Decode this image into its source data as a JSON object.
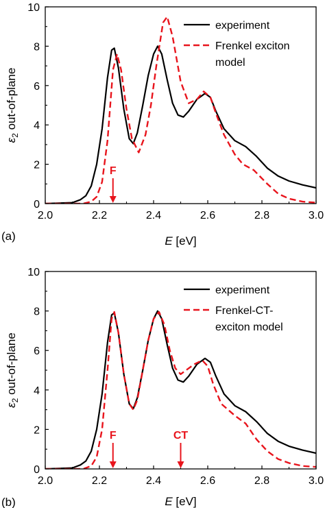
{
  "chart_data": [
    {
      "type": "line",
      "panel_label": "(a)",
      "xlabel": "E [eV]",
      "xlabel_var": "E",
      "xlabel_unit": " [eV]",
      "ylabel": "ε2 out-of-plane",
      "ylabel_sym": "ε",
      "ylabel_sub": "2",
      "ylabel_rest": " out-of-plane",
      "xlim": [
        2.0,
        3.0
      ],
      "ylim": [
        0,
        10
      ],
      "xticks": [
        "2.0",
        "2.2",
        "2.4",
        "2.6",
        "2.8",
        "3.0"
      ],
      "yticks": [
        "0",
        "2",
        "4",
        "6",
        "8",
        "10"
      ],
      "grid": false,
      "legend_position": "top-right",
      "legend": [
        "experiment",
        "Frenkel exciton",
        "model"
      ],
      "annotations": [
        {
          "text": "F",
          "x": 2.25,
          "color": "#e8141c"
        }
      ],
      "series": [
        {
          "name": "experiment",
          "color": "#000000",
          "style": "solid",
          "points": [
            [
              2.0,
              0.0
            ],
            [
              2.1,
              0.05
            ],
            [
              2.13,
              0.2
            ],
            [
              2.15,
              0.4
            ],
            [
              2.17,
              0.9
            ],
            [
              2.19,
              2.0
            ],
            [
              2.21,
              3.8
            ],
            [
              2.23,
              6.4
            ],
            [
              2.245,
              7.8
            ],
            [
              2.255,
              7.9
            ],
            [
              2.27,
              6.9
            ],
            [
              2.29,
              4.8
            ],
            [
              2.31,
              3.3
            ],
            [
              2.325,
              3.05
            ],
            [
              2.34,
              3.6
            ],
            [
              2.36,
              5.0
            ],
            [
              2.38,
              6.5
            ],
            [
              2.4,
              7.6
            ],
            [
              2.415,
              8.0
            ],
            [
              2.43,
              7.6
            ],
            [
              2.45,
              6.3
            ],
            [
              2.47,
              5.1
            ],
            [
              2.49,
              4.5
            ],
            [
              2.51,
              4.4
            ],
            [
              2.53,
              4.7
            ],
            [
              2.56,
              5.3
            ],
            [
              2.59,
              5.6
            ],
            [
              2.61,
              5.4
            ],
            [
              2.63,
              4.7
            ],
            [
              2.66,
              3.8
            ],
            [
              2.7,
              3.2
            ],
            [
              2.74,
              2.9
            ],
            [
              2.78,
              2.4
            ],
            [
              2.82,
              1.8
            ],
            [
              2.86,
              1.4
            ],
            [
              2.9,
              1.15
            ],
            [
              2.95,
              0.95
            ],
            [
              3.0,
              0.8
            ]
          ]
        },
        {
          "name": "Frenkel exciton model",
          "color": "#e8141c",
          "style": "dashed",
          "points": [
            [
              2.0,
              0.0
            ],
            [
              2.14,
              0.0
            ],
            [
              2.17,
              0.1
            ],
            [
              2.19,
              0.35
            ],
            [
              2.21,
              1.1
            ],
            [
              2.23,
              3.2
            ],
            [
              2.25,
              6.8
            ],
            [
              2.265,
              7.6
            ],
            [
              2.28,
              6.8
            ],
            [
              2.3,
              4.8
            ],
            [
              2.32,
              3.3
            ],
            [
              2.345,
              2.6
            ],
            [
              2.37,
              3.5
            ],
            [
              2.39,
              5.0
            ],
            [
              2.41,
              7.0
            ],
            [
              2.435,
              9.2
            ],
            [
              2.45,
              9.5
            ],
            [
              2.47,
              8.5
            ],
            [
              2.5,
              6.2
            ],
            [
              2.53,
              5.1
            ],
            [
              2.56,
              5.3
            ],
            [
              2.585,
              5.7
            ],
            [
              2.61,
              5.4
            ],
            [
              2.63,
              4.6
            ],
            [
              2.66,
              3.5
            ],
            [
              2.7,
              2.5
            ],
            [
              2.73,
              2.0
            ],
            [
              2.77,
              1.7
            ],
            [
              2.82,
              1.0
            ],
            [
              2.86,
              0.5
            ],
            [
              2.9,
              0.25
            ],
            [
              2.95,
              0.1
            ],
            [
              3.0,
              0.05
            ]
          ]
        }
      ]
    },
    {
      "type": "line",
      "panel_label": "(b)",
      "xlabel": "E [eV]",
      "xlabel_var": "E",
      "xlabel_unit": " [eV]",
      "ylabel": "ε2 out-of-plane",
      "ylabel_sym": "ε",
      "ylabel_sub": "2",
      "ylabel_rest": " out-of-plane",
      "xlim": [
        2.0,
        3.0
      ],
      "ylim": [
        0,
        10
      ],
      "xticks": [
        "2.0",
        "2.2",
        "2.4",
        "2.6",
        "2.8",
        "3.0"
      ],
      "yticks": [
        "0",
        "2",
        "4",
        "6",
        "8",
        "10"
      ],
      "grid": false,
      "legend_position": "top-right",
      "legend": [
        "experiment",
        "Frenkel-CT-",
        "exciton model"
      ],
      "annotations": [
        {
          "text": "F",
          "x": 2.25,
          "color": "#e8141c"
        },
        {
          "text": "CT",
          "x": 2.5,
          "color": "#e8141c"
        }
      ],
      "series": [
        {
          "name": "experiment",
          "color": "#000000",
          "style": "solid",
          "points": [
            [
              2.0,
              0.0
            ],
            [
              2.1,
              0.05
            ],
            [
              2.13,
              0.2
            ],
            [
              2.15,
              0.4
            ],
            [
              2.17,
              0.9
            ],
            [
              2.19,
              2.0
            ],
            [
              2.21,
              3.8
            ],
            [
              2.23,
              6.4
            ],
            [
              2.245,
              7.8
            ],
            [
              2.255,
              7.9
            ],
            [
              2.27,
              6.9
            ],
            [
              2.29,
              4.8
            ],
            [
              2.31,
              3.3
            ],
            [
              2.325,
              3.05
            ],
            [
              2.34,
              3.6
            ],
            [
              2.36,
              5.0
            ],
            [
              2.38,
              6.5
            ],
            [
              2.4,
              7.6
            ],
            [
              2.415,
              8.0
            ],
            [
              2.43,
              7.6
            ],
            [
              2.45,
              6.3
            ],
            [
              2.47,
              5.1
            ],
            [
              2.49,
              4.5
            ],
            [
              2.51,
              4.4
            ],
            [
              2.53,
              4.7
            ],
            [
              2.56,
              5.3
            ],
            [
              2.59,
              5.6
            ],
            [
              2.61,
              5.4
            ],
            [
              2.63,
              4.7
            ],
            [
              2.66,
              3.8
            ],
            [
              2.7,
              3.2
            ],
            [
              2.74,
              2.9
            ],
            [
              2.78,
              2.4
            ],
            [
              2.82,
              1.8
            ],
            [
              2.86,
              1.4
            ],
            [
              2.9,
              1.15
            ],
            [
              2.95,
              0.95
            ],
            [
              3.0,
              0.8
            ]
          ]
        },
        {
          "name": "Frenkel-CT-exciton model",
          "color": "#e8141c",
          "style": "dashed",
          "points": [
            [
              2.0,
              0.0
            ],
            [
              2.14,
              0.0
            ],
            [
              2.17,
              0.15
            ],
            [
              2.19,
              0.6
            ],
            [
              2.21,
              2.0
            ],
            [
              2.23,
              5.0
            ],
            [
              2.245,
              7.6
            ],
            [
              2.255,
              7.95
            ],
            [
              2.27,
              6.9
            ],
            [
              2.29,
              4.8
            ],
            [
              2.31,
              3.3
            ],
            [
              2.325,
              3.0
            ],
            [
              2.34,
              3.5
            ],
            [
              2.36,
              5.0
            ],
            [
              2.38,
              6.5
            ],
            [
              2.4,
              7.6
            ],
            [
              2.42,
              7.95
            ],
            [
              2.44,
              7.3
            ],
            [
              2.46,
              6.0
            ],
            [
              2.48,
              5.1
            ],
            [
              2.5,
              4.8
            ],
            [
              2.52,
              5.0
            ],
            [
              2.55,
              5.3
            ],
            [
              2.58,
              5.5
            ],
            [
              2.6,
              5.2
            ],
            [
              2.62,
              4.3
            ],
            [
              2.65,
              3.3
            ],
            [
              2.7,
              2.7
            ],
            [
              2.74,
              2.3
            ],
            [
              2.78,
              1.5
            ],
            [
              2.82,
              0.9
            ],
            [
              2.86,
              0.5
            ],
            [
              2.9,
              0.3
            ],
            [
              2.95,
              0.15
            ],
            [
              3.0,
              0.1
            ]
          ]
        }
      ]
    }
  ]
}
